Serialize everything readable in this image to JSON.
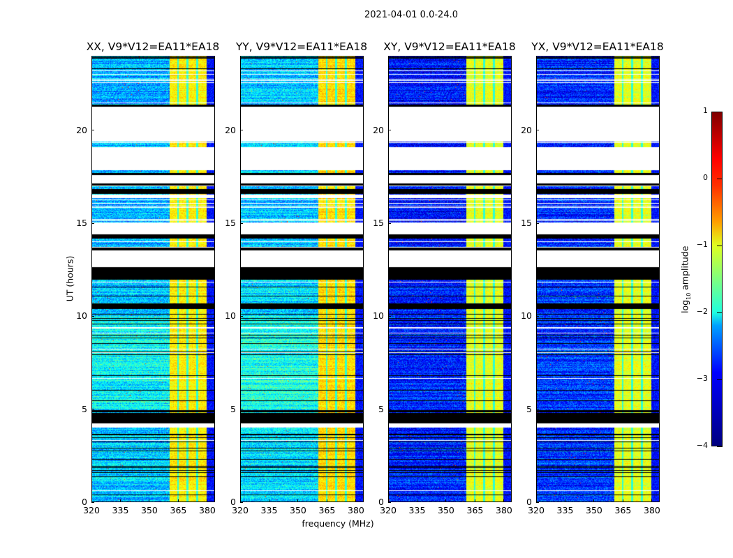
{
  "chart_data": {
    "type": "heatmap",
    "title": "2021-04-01 0.0-24.0",
    "xlabel": "frequency (MHz)",
    "ylabel": "UT (hours)",
    "xlim": [
      320,
      384
    ],
    "ylim": [
      0,
      24
    ],
    "xticks": [
      "320",
      "335",
      "350",
      "365",
      "380"
    ],
    "xtick_values": [
      320,
      335,
      350,
      365,
      380
    ],
    "yticks": [
      "0",
      "5",
      "10",
      "15",
      "20"
    ],
    "ytick_values": [
      0,
      5,
      10,
      15,
      20
    ],
    "panels": [
      {
        "title": "XX, V9*V12=EA11*EA18",
        "background_level": -2.4,
        "band_level": -0.8
      },
      {
        "title": "YY, V9*V12=EA11*EA18",
        "background_level": -2.3,
        "band_level": -0.7
      },
      {
        "title": "XY, V9*V12=EA11*EA18",
        "background_level": -3.2,
        "band_level": -1.0
      },
      {
        "title": "YX, V9*V12=EA11*EA18",
        "background_level": -3.1,
        "band_level": -1.0
      }
    ],
    "bright_band_mhz": [
      360.5,
      380
    ],
    "band_dips_mhz": [
      365,
      370,
      375
    ],
    "no_data_hours": [
      [
        19.4,
        21.3
      ],
      [
        17.86,
        19.1
      ],
      [
        17.15,
        17.6
      ],
      [
        16.35,
        16.55
      ],
      [
        14.4,
        15.05
      ],
      [
        12.65,
        13.55
      ],
      [
        4.0,
        4.2
      ]
    ],
    "flagged_hours": [
      [
        21.3,
        21.4
      ],
      [
        17.6,
        17.7
      ],
      [
        17.05,
        17.15
      ],
      [
        16.6,
        16.85
      ],
      [
        14.2,
        14.4
      ],
      [
        13.55,
        13.7
      ],
      [
        11.97,
        12.65
      ],
      [
        10.4,
        10.7
      ],
      [
        4.2,
        4.77
      ]
    ],
    "colorbar": {
      "label_prefix": "log",
      "label_sub": "10",
      "label_suffix": " amplitude",
      "range": [
        -4,
        1
      ],
      "ticks": [
        "1",
        "0",
        "−1",
        "−2",
        "−3",
        "−4"
      ],
      "tick_values": [
        1,
        0,
        -1,
        -2,
        -3,
        -4
      ],
      "colormap": "jet"
    }
  }
}
